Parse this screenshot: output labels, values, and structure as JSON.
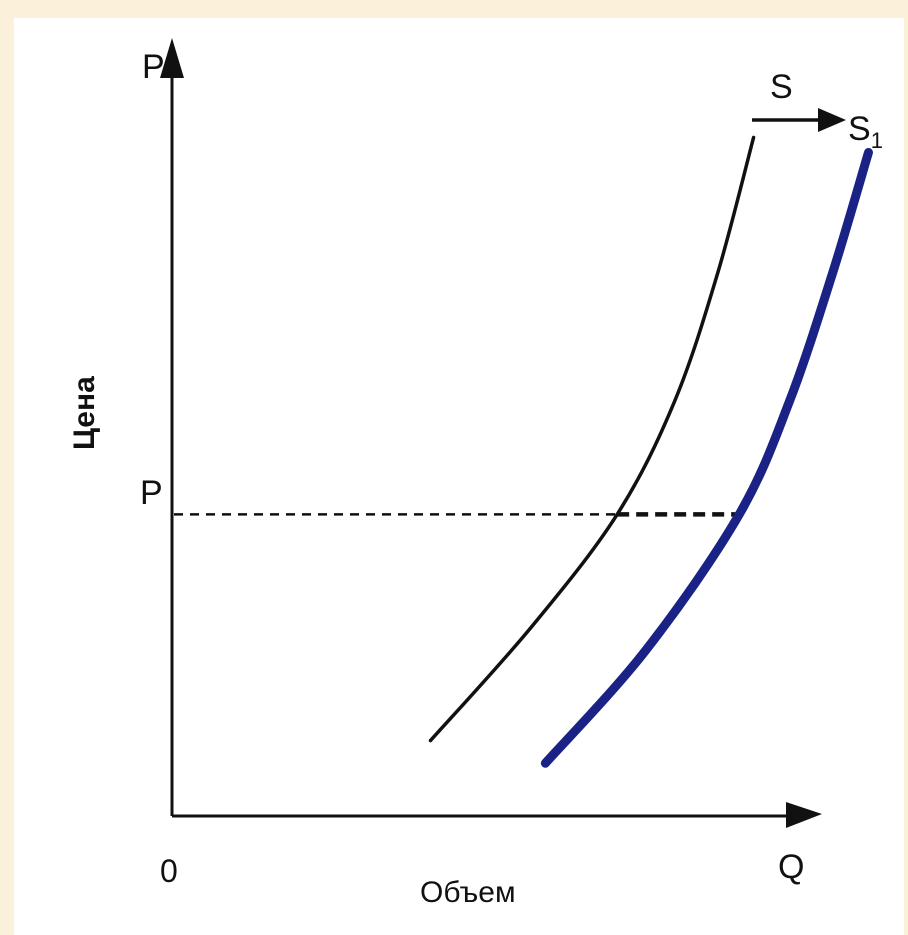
{
  "chart_data": {
    "type": "line",
    "title": "",
    "x_axis": {
      "symbol": "Q",
      "label": "Объем",
      "origin_label": "0"
    },
    "y_axis": {
      "symbol": "P",
      "label": "Цена"
    },
    "price_marker": {
      "label": "P",
      "level": 0.4
    },
    "shift": {
      "from": "S",
      "to": "S",
      "to_subscript": "1"
    },
    "series": [
      {
        "name": "S",
        "color": "#111111",
        "points": [
          [
            0.36,
            0.1
          ],
          [
            0.5,
            0.25
          ],
          [
            0.62,
            0.4
          ],
          [
            0.7,
            0.55
          ],
          [
            0.76,
            0.72
          ],
          [
            0.81,
            0.9
          ]
        ]
      },
      {
        "name": "S1",
        "color": "#1a2385",
        "points": [
          [
            0.52,
            0.07
          ],
          [
            0.66,
            0.22
          ],
          [
            0.79,
            0.4
          ],
          [
            0.86,
            0.55
          ],
          [
            0.92,
            0.72
          ],
          [
            0.97,
            0.88
          ]
        ]
      }
    ],
    "colors": {
      "axis": "#111111",
      "supply": "#111111",
      "supply_shifted": "#1a2385"
    }
  }
}
